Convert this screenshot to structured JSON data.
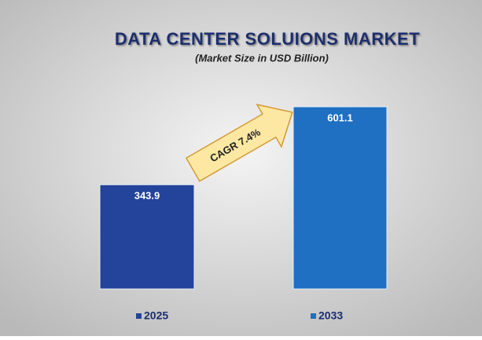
{
  "chart_data": {
    "type": "bar",
    "title": "DATA CENTER SOLUIONS MARKET",
    "subtitle": "(Market Size in USD Billion)",
    "annotation": "CAGR 7.4%",
    "series": [
      {
        "name": "2025",
        "color": "#24439b",
        "values": [
          343.9
        ]
      },
      {
        "name": "2033",
        "color": "#1f6fc2",
        "values": [
          601.1
        ]
      }
    ]
  }
}
